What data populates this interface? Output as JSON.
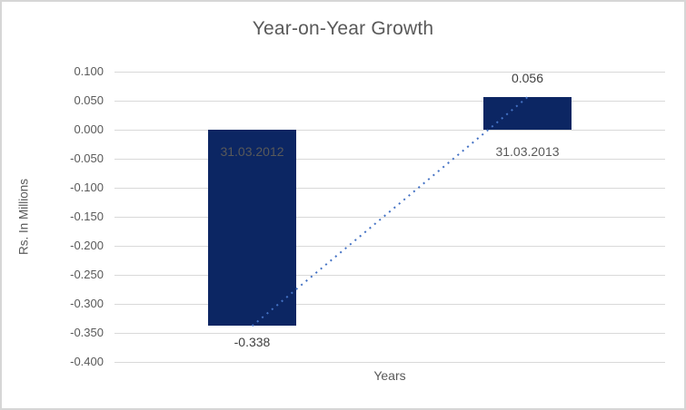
{
  "window": {
    "background": "#ffffff",
    "border_color": "#d6d6d6"
  },
  "chart_data": {
    "type": "bar",
    "title": "Year-on-Year Growth",
    "xlabel": "Years",
    "ylabel": "Rs. In Millions",
    "categories": [
      "31.03.2012",
      "31.03.2013"
    ],
    "values": [
      -0.338,
      0.056
    ],
    "data_labels": [
      "-0.338",
      "0.056"
    ],
    "ylim": [
      -0.4,
      0.1
    ],
    "ytick_step": 0.05,
    "yticks": [
      0.1,
      0.05,
      0.0,
      -0.05,
      -0.1,
      -0.15,
      -0.2,
      -0.25,
      -0.3,
      -0.35,
      -0.4
    ],
    "ytick_labels": [
      "0.100",
      "0.050",
      "0.000",
      "-0.050",
      "-0.100",
      "-0.150",
      "-0.200",
      "-0.250",
      "-0.300",
      "-0.350",
      "-0.400"
    ],
    "grid": true,
    "legend": "none",
    "trendline": {
      "type": "linear",
      "style": "dotted",
      "x": [
        0,
        1
      ],
      "y": [
        -0.338,
        0.056
      ],
      "color": "#4472c4"
    },
    "colors": {
      "bar": "#0c2663",
      "gridline": "#d9d9d9",
      "tick_text": "#595959",
      "title_text": "#595959",
      "axis_title_text": "#595959",
      "category_text": "#595959",
      "data_label_text": "#404040",
      "trendline": "#4472c4"
    }
  }
}
